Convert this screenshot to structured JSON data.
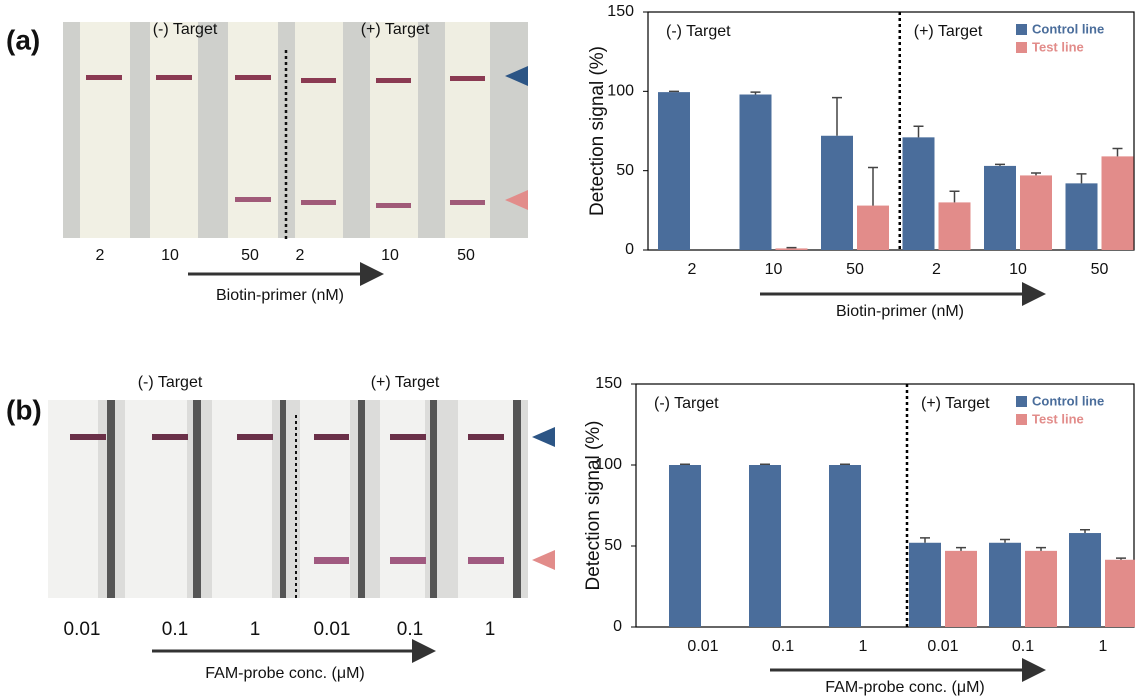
{
  "panel_labels": [
    "(a)",
    "(b)"
  ],
  "photos": [
    {
      "groups": [
        "(-) Target",
        "(+) Target"
      ],
      "lanes": [
        "2",
        "10",
        "50",
        "2",
        "10",
        "50"
      ],
      "axis_label": "Biotin-primer (nM)"
    },
    {
      "groups": [
        "(-) Target",
        "(+) Target"
      ],
      "lanes": [
        "0.01",
        "0.1",
        "1",
        "0.01",
        "0.1",
        "1"
      ],
      "axis_label": "FAM-probe conc. (μM)"
    }
  ],
  "chart_data": [
    {
      "type": "bar",
      "y_label": "Detection signal (%)",
      "x_label": "Biotin-primer (nM)",
      "annotations": [
        "(-) Target",
        "(+) Target"
      ],
      "categories": [
        "2",
        "10",
        "50",
        "2",
        "10",
        "50"
      ],
      "series": [
        {
          "name": "Control line",
          "color": "#4a6d9b",
          "values": [
            99.5,
            98,
            72,
            71,
            53,
            42
          ],
          "errors": [
            0.5,
            1.5,
            24,
            7,
            1,
            6
          ]
        },
        {
          "name": "Test line",
          "color": "#e28c8a",
          "values": [
            null,
            1,
            28,
            30,
            47,
            59
          ],
          "errors": [
            null,
            0.5,
            24,
            7,
            1.5,
            5
          ]
        }
      ],
      "ylim": [
        0,
        150
      ],
      "yticks": [
        0,
        50,
        100,
        150
      ],
      "legend": "upper right"
    },
    {
      "type": "bar",
      "y_label": "Detection signal (%)",
      "x_label": "FAM-probe conc. (μM)",
      "annotations": [
        "(-) Target",
        "(+) Target"
      ],
      "categories": [
        "0.01",
        "0.1",
        "1",
        "0.01",
        "0.1",
        "1"
      ],
      "series": [
        {
          "name": "Control line",
          "color": "#4a6d9b",
          "values": [
            100,
            100,
            100,
            52,
            52,
            58
          ],
          "errors": [
            0.5,
            0.5,
            0.5,
            3,
            2,
            2
          ]
        },
        {
          "name": "Test line",
          "color": "#e28c8a",
          "values": [
            null,
            null,
            null,
            47,
            47,
            41.5
          ],
          "errors": [
            null,
            null,
            null,
            2,
            2,
            1
          ]
        }
      ],
      "ylim": [
        0,
        150
      ],
      "yticks": [
        0,
        50,
        100,
        150
      ],
      "legend": "upper right"
    }
  ]
}
